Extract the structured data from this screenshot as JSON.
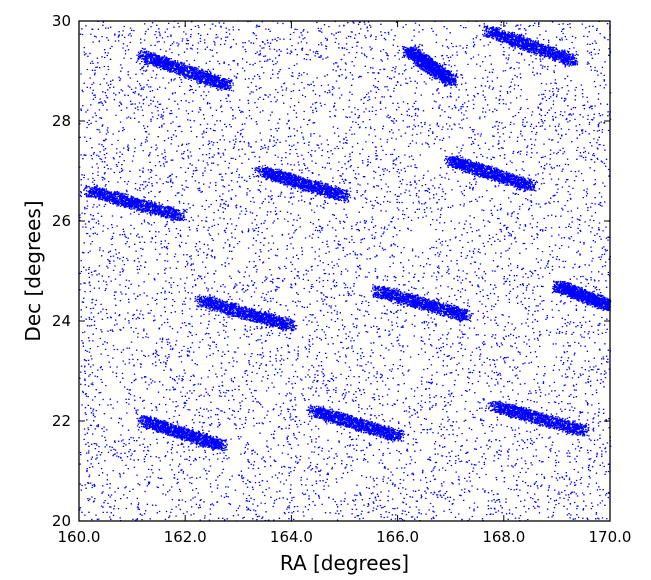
{
  "chart_data": {
    "type": "scatter",
    "title": "",
    "xlabel": "RA [degrees]",
    "ylabel": "Dec [degrees]",
    "xlim": [
      160.0,
      170.0
    ],
    "ylim": [
      20,
      30
    ],
    "xticks": [
      160.0,
      162.0,
      164.0,
      166.0,
      168.0,
      170.0
    ],
    "xtick_labels": [
      "160.0",
      "162.0",
      "164.0",
      "166.0",
      "168.0",
      "170.0"
    ],
    "yticks": [
      20,
      22,
      24,
      26,
      28,
      30
    ],
    "ytick_labels": [
      "20",
      "22",
      "24",
      "26",
      "28",
      "30"
    ],
    "grid": false,
    "legend": "none",
    "colors": {
      "points": "#0000ff",
      "background": "#ffffff",
      "axes": "#000000"
    },
    "series": [
      {
        "pattern": "dense random point field with hexagonal tiling overlaps",
        "point_count_estimate": 60000,
        "tile_centers": [
          [
            161.3,
            27.8
          ],
          [
            164.6,
            27.9
          ],
          [
            167.9,
            28.1
          ],
          [
            163.0,
            25.3
          ],
          [
            166.4,
            25.5
          ],
          [
            169.7,
            25.6
          ],
          [
            161.3,
            23.0
          ],
          [
            164.5,
            23.1
          ],
          [
            167.9,
            23.3
          ],
          [
            163.0,
            20.7
          ],
          [
            166.4,
            20.8
          ],
          [
            169.7,
            21.0
          ],
          [
            160.2,
            25.3
          ]
        ],
        "holes": [
          [
            161.0,
            29.4
          ],
          [
            163.0,
            28.6
          ],
          [
            164.4,
            29.6
          ],
          [
            166.5,
            28.6
          ],
          [
            167.2,
            29.7
          ],
          [
            169.5,
            29.0
          ],
          [
            161.4,
            27.8
          ],
          [
            164.6,
            27.9
          ],
          [
            168.0,
            28.1
          ],
          [
            163.1,
            27.0
          ],
          [
            165.3,
            26.4
          ],
          [
            166.6,
            27.2
          ],
          [
            168.8,
            26.6
          ],
          [
            170.0,
            27.3
          ],
          [
            161.8,
            26.2
          ],
          [
            163.1,
            25.3
          ],
          [
            160.3,
            25.2
          ],
          [
            166.4,
            25.6
          ],
          [
            169.0,
            24.9
          ],
          [
            160.4,
            24.5
          ],
          [
            161.9,
            24.5
          ],
          [
            164.1,
            23.9
          ],
          [
            165.4,
            24.7
          ],
          [
            167.4,
            24.0
          ],
          [
            160.8,
            23.6
          ],
          [
            162.3,
            23.0
          ],
          [
            165.6,
            23.2
          ],
          [
            168.8,
            23.3
          ],
          [
            164.2,
            22.2
          ],
          [
            167.1,
            22.3
          ],
          [
            169.0,
            21.6
          ],
          [
            161.0,
            22.0
          ],
          [
            162.9,
            21.4
          ],
          [
            166.1,
            21.6
          ],
          [
            161.4,
            20.5
          ],
          [
            164.8,
            20.6
          ],
          [
            167.8,
            20.7
          ]
        ],
        "dense_bands": [
          [
            [
              161.2,
              29.3
            ],
            [
              162.8,
              28.7
            ]
          ],
          [
            [
              163.4,
              27.0
            ],
            [
              165.0,
              26.5
            ]
          ],
          [
            [
              167.0,
              27.2
            ],
            [
              168.5,
              26.7
            ]
          ],
          [
            [
              160.2,
              26.6
            ],
            [
              161.9,
              26.1
            ]
          ],
          [
            [
              162.3,
              24.4
            ],
            [
              164.0,
              23.9
            ]
          ],
          [
            [
              165.6,
              24.6
            ],
            [
              167.3,
              24.1
            ]
          ],
          [
            [
              169.0,
              24.7
            ],
            [
              170.0,
              24.3
            ]
          ],
          [
            [
              161.2,
              22.0
            ],
            [
              162.7,
              21.5
            ]
          ],
          [
            [
              164.4,
              22.2
            ],
            [
              166.0,
              21.7
            ]
          ],
          [
            [
              167.8,
              22.3
            ],
            [
              169.5,
              21.8
            ]
          ],
          [
            [
              166.2,
              29.4
            ],
            [
              167.0,
              28.8
            ]
          ],
          [
            [
              167.7,
              29.8
            ],
            [
              169.3,
              29.2
            ]
          ]
        ]
      }
    ]
  }
}
